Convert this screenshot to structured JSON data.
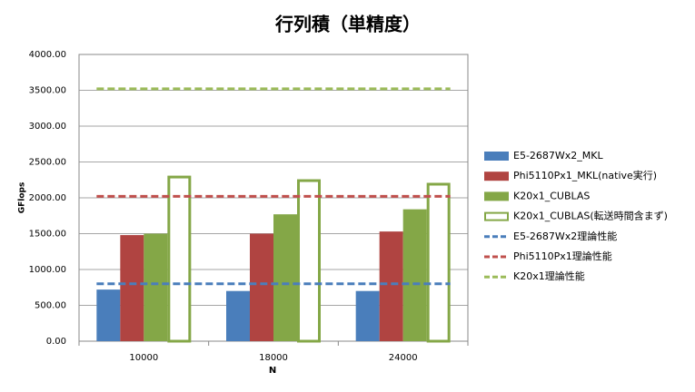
{
  "chart_data": {
    "type": "bar",
    "title": "行列積（単精度）",
    "x_label": "N",
    "y_label": "GFlops",
    "categories": [
      "10000",
      "18000",
      "24000"
    ],
    "ylim": [
      0,
      4000
    ],
    "yticks": [
      {
        "value": 0,
        "label": "0.00"
      },
      {
        "value": 500,
        "label": "500.00"
      },
      {
        "value": 1000,
        "label": "1000.00"
      },
      {
        "value": 1500,
        "label": "1500.00"
      },
      {
        "value": 2000,
        "label": "2000.00"
      },
      {
        "value": 2500,
        "label": "2500.00"
      },
      {
        "value": 3000,
        "label": "3000.00"
      },
      {
        "value": 3500,
        "label": "3500.00"
      },
      {
        "value": 4000,
        "label": "4000.00"
      }
    ],
    "grid": true,
    "legend": "right",
    "series": [
      {
        "name": "E5-2687Wx2_MKL",
        "type": "bar",
        "color": "#4a7ebb",
        "values": [
          720,
          700,
          700
        ]
      },
      {
        "name": "Phi5110Px1_MKL(native実行)",
        "type": "bar",
        "color": "#b04441",
        "values": [
          1480,
          1500,
          1530
        ]
      },
      {
        "name": "K20x1_CUBLAS",
        "type": "bar",
        "color": "#84a747",
        "values": [
          1500,
          1770,
          1840
        ]
      },
      {
        "name": "K20x1_CUBLAS(転送時間含まず)",
        "type": "bar",
        "color": "#84a747",
        "fill": "none",
        "values": [
          2290,
          2240,
          2190
        ]
      },
      {
        "name": "E5-2687Wx2理論性能",
        "type": "line",
        "color": "#4a7ebb",
        "dashed": true,
        "values": [
          800,
          800,
          800
        ]
      },
      {
        "name": "Phi5110Px1理論性能",
        "type": "line",
        "color": "#c0504d",
        "dashed": true,
        "values": [
          2020,
          2020,
          2020
        ]
      },
      {
        "name": "K20x1理論性能",
        "type": "line",
        "color": "#9bbb59",
        "dashed": true,
        "values": [
          3520,
          3520,
          3520
        ]
      }
    ]
  }
}
